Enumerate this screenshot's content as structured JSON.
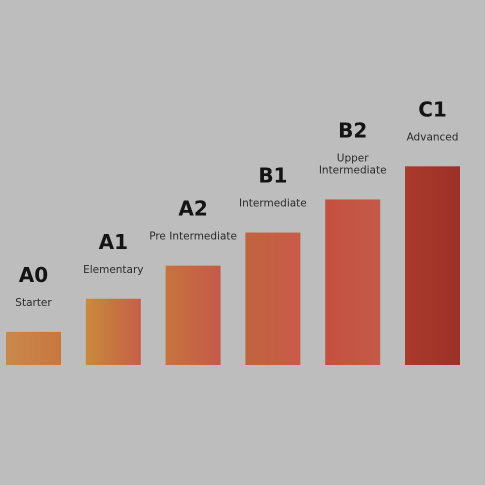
{
  "chart_data": {
    "type": "bar",
    "categories": [
      "A0",
      "A1",
      "A2",
      "B1",
      "B2",
      "C1"
    ],
    "category_labels": [
      [
        "Starter"
      ],
      [
        "Elementary"
      ],
      [
        "Pre Intermediate"
      ],
      [
        "Intermediate"
      ],
      [
        "Upper",
        "Intermediate"
      ],
      [
        "Advanced"
      ]
    ],
    "values": [
      1,
      2,
      3,
      4,
      5,
      6
    ],
    "ylim": [
      0,
      6.6
    ],
    "colors": [
      [
        "#c8894c",
        "#c8763f"
      ],
      [
        "#c98a3b",
        "#c55f48"
      ],
      [
        "#c6733e",
        "#c55a4a"
      ],
      [
        "#c0643e",
        "#c95b49"
      ],
      [
        "#c4503f",
        "#c45a4a"
      ],
      [
        "#ab3a2c",
        "#9c3128"
      ]
    ],
    "background": "#bdbdbd",
    "grid": false,
    "legend": "none"
  }
}
